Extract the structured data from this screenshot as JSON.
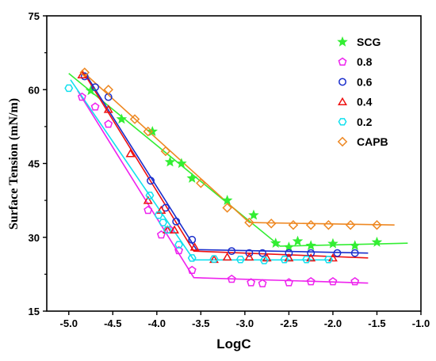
{
  "chart_data": {
    "type": "scatter",
    "title": "",
    "xlabel": "LogC",
    "ylabel": "Surface Tension (mN/m)",
    "xlim": [
      -5.25,
      -1.0
    ],
    "ylim": [
      15,
      75
    ],
    "xticks": [
      -5.0,
      -4.5,
      -4.0,
      -3.5,
      -3.0,
      -2.5,
      -2.0,
      -1.5,
      -1.0
    ],
    "xtick_labels": [
      "-5.0",
      "-4.5",
      "-4.0",
      "-3.5",
      "-3.0",
      "-2.5",
      "-2.0",
      "-1.5",
      "-1.0"
    ],
    "yticks": [
      15,
      30,
      45,
      60,
      75
    ],
    "ytick_labels": [
      "15",
      "30",
      "45",
      "60",
      "75"
    ],
    "grid": false,
    "legend_position": "top-right",
    "series": [
      {
        "name": "SCG",
        "color": "#33ee33",
        "marker": "star",
        "x": [
          -4.75,
          -4.4,
          -4.05,
          -3.85,
          -3.72,
          -3.6,
          -3.2,
          -2.9,
          -2.65,
          -2.5,
          -2.4,
          -2.25,
          -2.0,
          -1.75,
          -1.5
        ],
        "y": [
          59.8,
          54.0,
          51.5,
          45.3,
          45.0,
          42.0,
          37.5,
          34.5,
          28.8,
          28.0,
          29.2,
          28.3,
          28.7,
          28.3,
          29.0
        ],
        "fit": [
          [
            -5.0,
            63.3
          ],
          [
            -2.6,
            28.2
          ],
          [
            -1.15,
            28.8
          ]
        ]
      },
      {
        "name": "0.8",
        "color": "#ee22ee",
        "marker": "pentagon",
        "x": [
          -4.85,
          -4.7,
          -4.55,
          -4.1,
          -3.95,
          -3.85,
          -3.75,
          -3.6,
          -3.15,
          -2.93,
          -2.8,
          -2.5,
          -2.25,
          -2.0,
          -1.75
        ],
        "y": [
          58.5,
          56.5,
          53.0,
          35.5,
          30.5,
          31.5,
          27.3,
          23.3,
          21.5,
          20.8,
          20.6,
          20.8,
          21.0,
          21.0,
          21.0
        ],
        "fit": [
          [
            -4.9,
            59.8
          ],
          [
            -3.58,
            21.8
          ],
          [
            -1.6,
            20.7
          ]
        ]
      },
      {
        "name": "0.6",
        "color": "#1a2ecc",
        "marker": "circle",
        "x": [
          -4.82,
          -4.7,
          -4.55,
          -4.07,
          -3.9,
          -3.78,
          -3.6,
          -3.15,
          -2.95,
          -2.8,
          -2.5,
          -2.25,
          -1.95,
          -1.75
        ],
        "y": [
          62.7,
          60.5,
          58.5,
          41.5,
          36.0,
          33.2,
          29.5,
          27.2,
          26.8,
          26.8,
          26.8,
          26.8,
          26.8,
          26.8
        ],
        "fit": [
          [
            -4.82,
            63.5
          ],
          [
            -3.55,
            27.5
          ],
          [
            -1.6,
            26.8
          ]
        ]
      },
      {
        "name": "0.4",
        "color": "#ee1111",
        "marker": "triangle",
        "x": [
          -4.85,
          -4.55,
          -4.3,
          -4.1,
          -3.95,
          -3.88,
          -3.8,
          -3.57,
          -3.35,
          -3.2,
          -2.95,
          -2.75,
          -2.5,
          -2.25,
          -2.0
        ],
        "y": [
          63.0,
          56.0,
          47.0,
          37.5,
          35.5,
          31.5,
          31.5,
          28.0,
          25.5,
          26.0,
          26.0,
          25.8,
          25.8,
          25.8,
          25.8
        ],
        "fit": [
          [
            -4.85,
            64.0
          ],
          [
            -3.58,
            27.2
          ],
          [
            -1.6,
            25.8
          ]
        ]
      },
      {
        "name": "0.2",
        "color": "#11e0ee",
        "marker": "hexagon",
        "x": [
          -5.0,
          -4.08,
          -3.98,
          -3.93,
          -3.88,
          -3.75,
          -3.6,
          -3.35,
          -3.05,
          -2.78,
          -2.55,
          -2.3,
          -2.05
        ],
        "y": [
          60.3,
          38.5,
          34.5,
          33.0,
          31.5,
          28.5,
          25.8,
          25.6,
          25.5,
          25.3,
          25.5,
          25.5,
          25.5
        ],
        "fit": [
          [
            -4.98,
            62.0
          ],
          [
            -3.58,
            25.4
          ],
          [
            -2.0,
            25.4
          ]
        ]
      },
      {
        "name": "CAPB",
        "color": "#ee8822",
        "marker": "diamond",
        "x": [
          -4.82,
          -4.55,
          -4.25,
          -4.1,
          -3.9,
          -3.5,
          -3.2,
          -2.95,
          -2.7,
          -2.45,
          -2.25,
          -2.05,
          -1.8,
          -1.5
        ],
        "y": [
          63.5,
          60.0,
          54.0,
          51.5,
          47.5,
          41.0,
          36.0,
          33.0,
          32.8,
          32.5,
          32.5,
          32.5,
          32.5,
          32.5
        ],
        "fit": [
          [
            -4.85,
            63.8
          ],
          [
            -2.95,
            33.0
          ],
          [
            -1.3,
            32.5
          ]
        ]
      }
    ]
  }
}
